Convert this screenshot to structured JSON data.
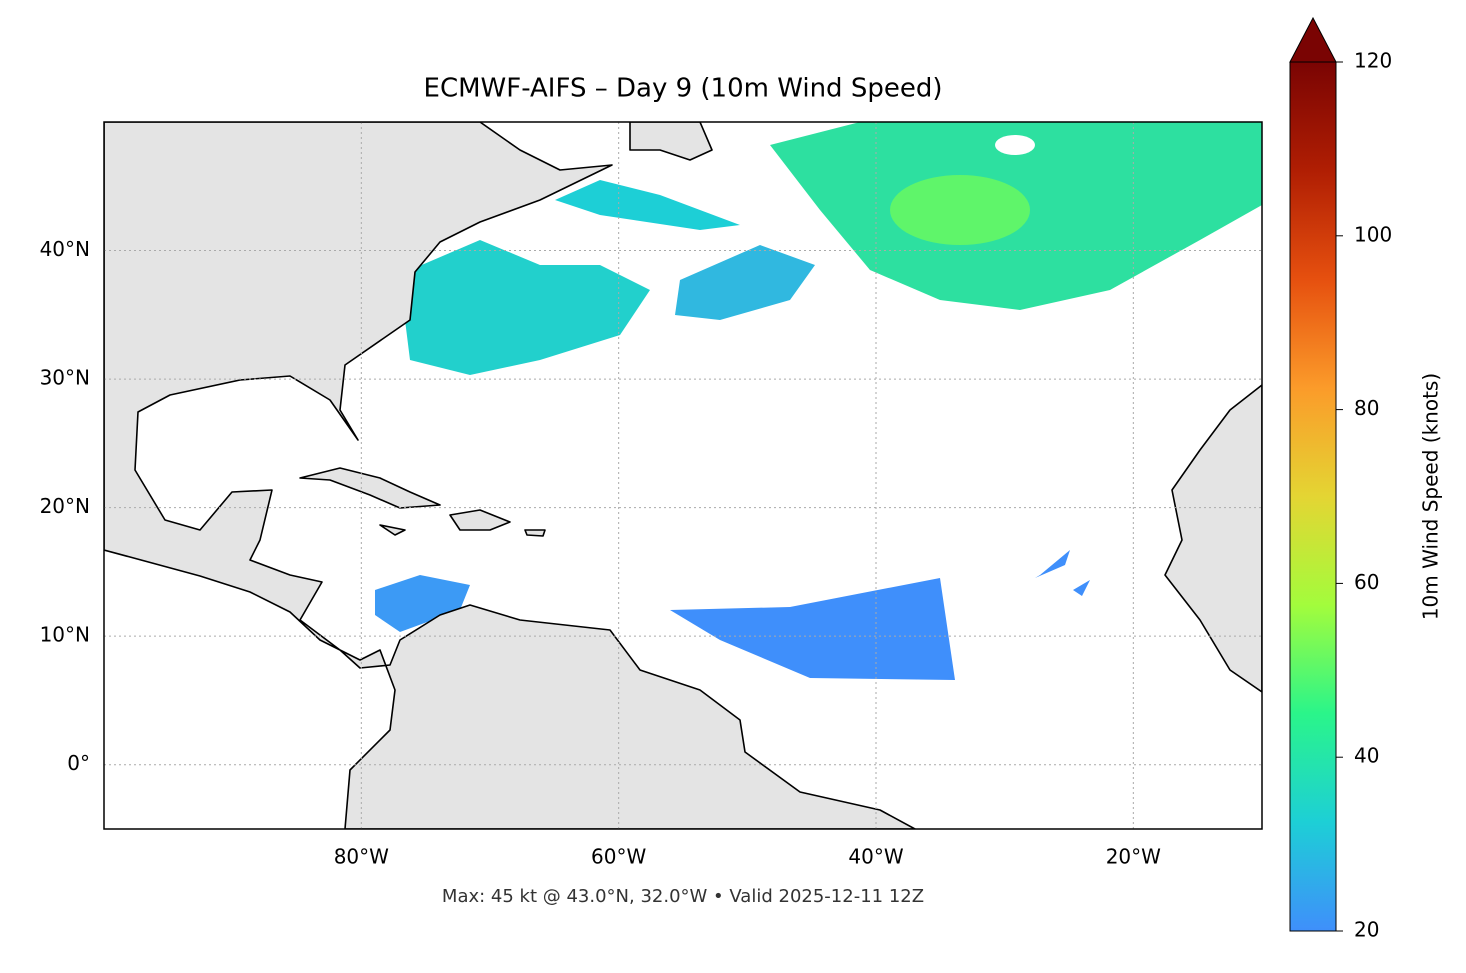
{
  "chart_data": {
    "type": "map",
    "title": "ECMWF-AIFS – Day 9 (10m Wind Speed)",
    "footnote": "Max: 45 kt @ 43.0°N, 32.0°W • Valid 2025-12-11 12Z",
    "xlim": [
      -100,
      -10
    ],
    "ylim": [
      -5,
      50
    ],
    "xticks": [
      {
        "value": -80,
        "label": "80°W"
      },
      {
        "value": -60,
        "label": "60°W"
      },
      {
        "value": -40,
        "label": "40°W"
      },
      {
        "value": -20,
        "label": "20°W"
      }
    ],
    "yticks": [
      {
        "value": 0,
        "label": "0°"
      },
      {
        "value": 10,
        "label": "10°N"
      },
      {
        "value": 20,
        "label": "20°N"
      },
      {
        "value": 30,
        "label": "30°N"
      },
      {
        "value": 40,
        "label": "40°N"
      }
    ],
    "grid": true,
    "colorbar": {
      "label": "10m Wind Speed (knots)",
      "lim": [
        20,
        120
      ],
      "ticks": [
        20,
        40,
        60,
        80,
        100,
        120
      ],
      "colors": [
        "#3f8ffb",
        "#1dcfd6",
        "#2af58a",
        "#a3fc3c",
        "#e4d533",
        "#fb9b2a",
        "#e6500f",
        "#b01e03",
        "#7a0403"
      ]
    }
  }
}
